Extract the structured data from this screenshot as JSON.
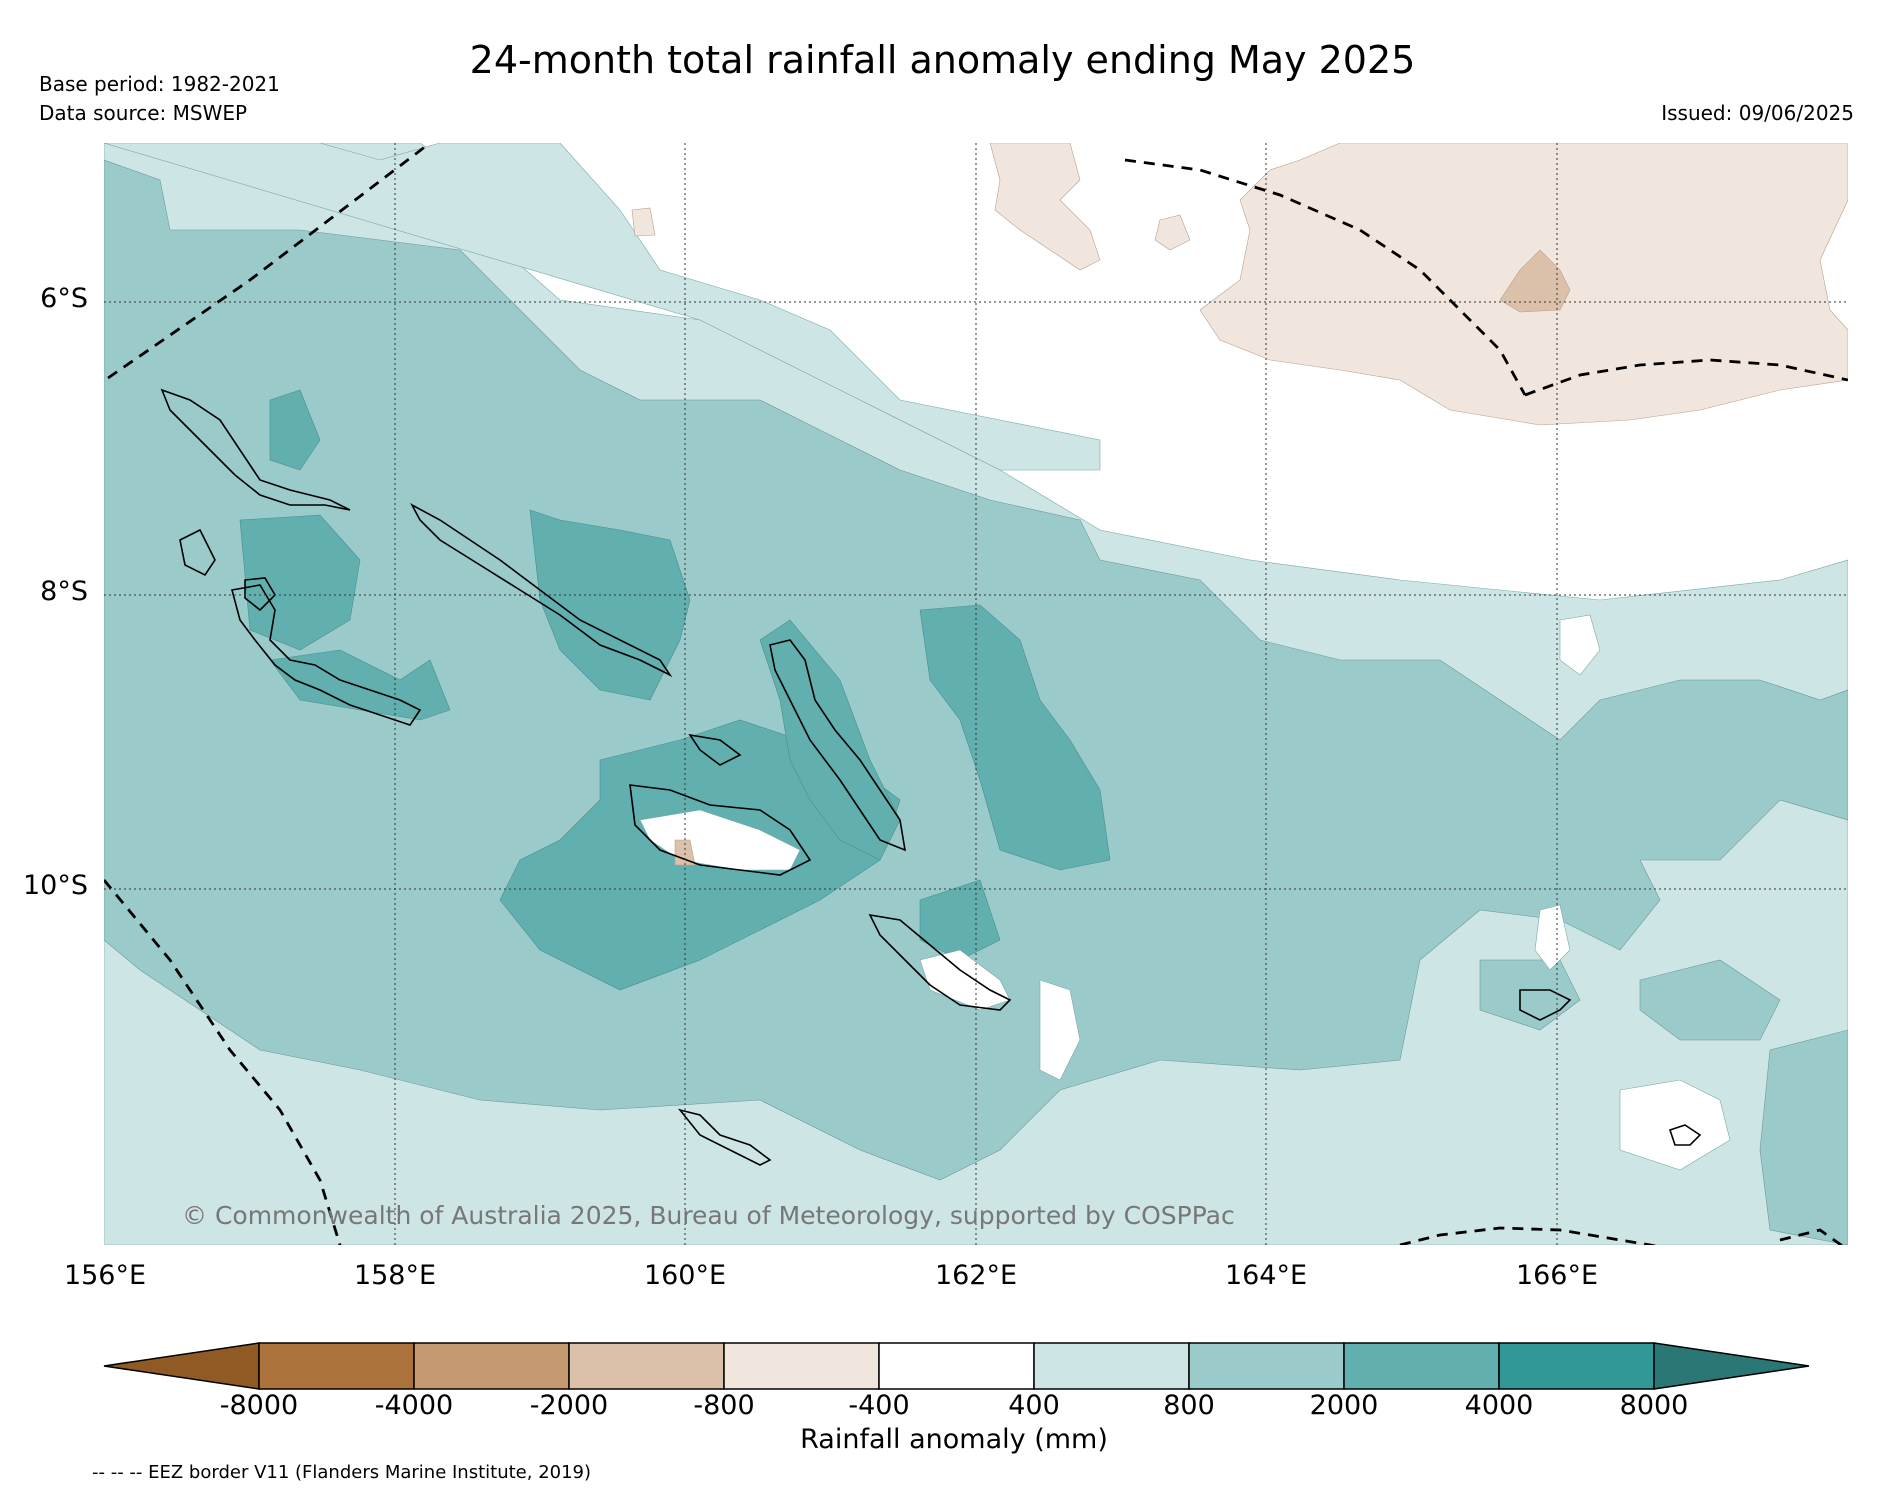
{
  "title": "24-month total rainfall anomaly ending May 2025",
  "base_period": "Base period: 1982-2021",
  "data_source": "Data source: MSWEP",
  "issued": "Issued: 09/06/2025",
  "copyright": "© Commonwealth of Australia 2025, Bureau of Meteorology, supported by COSPPac",
  "lat_labels": [
    "6°S",
    "8°S",
    "10°S"
  ],
  "lon_labels": [
    "156°E",
    "158°E",
    "160°E",
    "162°E",
    "164°E",
    "166°E"
  ],
  "colorbar": {
    "title": "Rainfall anomaly (mm)",
    "tick_labels": [
      "-8000",
      "-4000",
      "-2000",
      "-800",
      "-400",
      "400",
      "800",
      "2000",
      "4000",
      "8000"
    ],
    "colors": [
      "#8f5a24",
      "#ab733b",
      "#c59a70",
      "#dbc1a9",
      "#f0e6dd",
      "#ffffff",
      "#cde5e4",
      "#9bcaca",
      "#62afaf",
      "#319896",
      "#2a7775"
    ]
  },
  "footnote": "-- -- -- EEZ border V11 (Flanders Marine Institute, 2019)"
}
